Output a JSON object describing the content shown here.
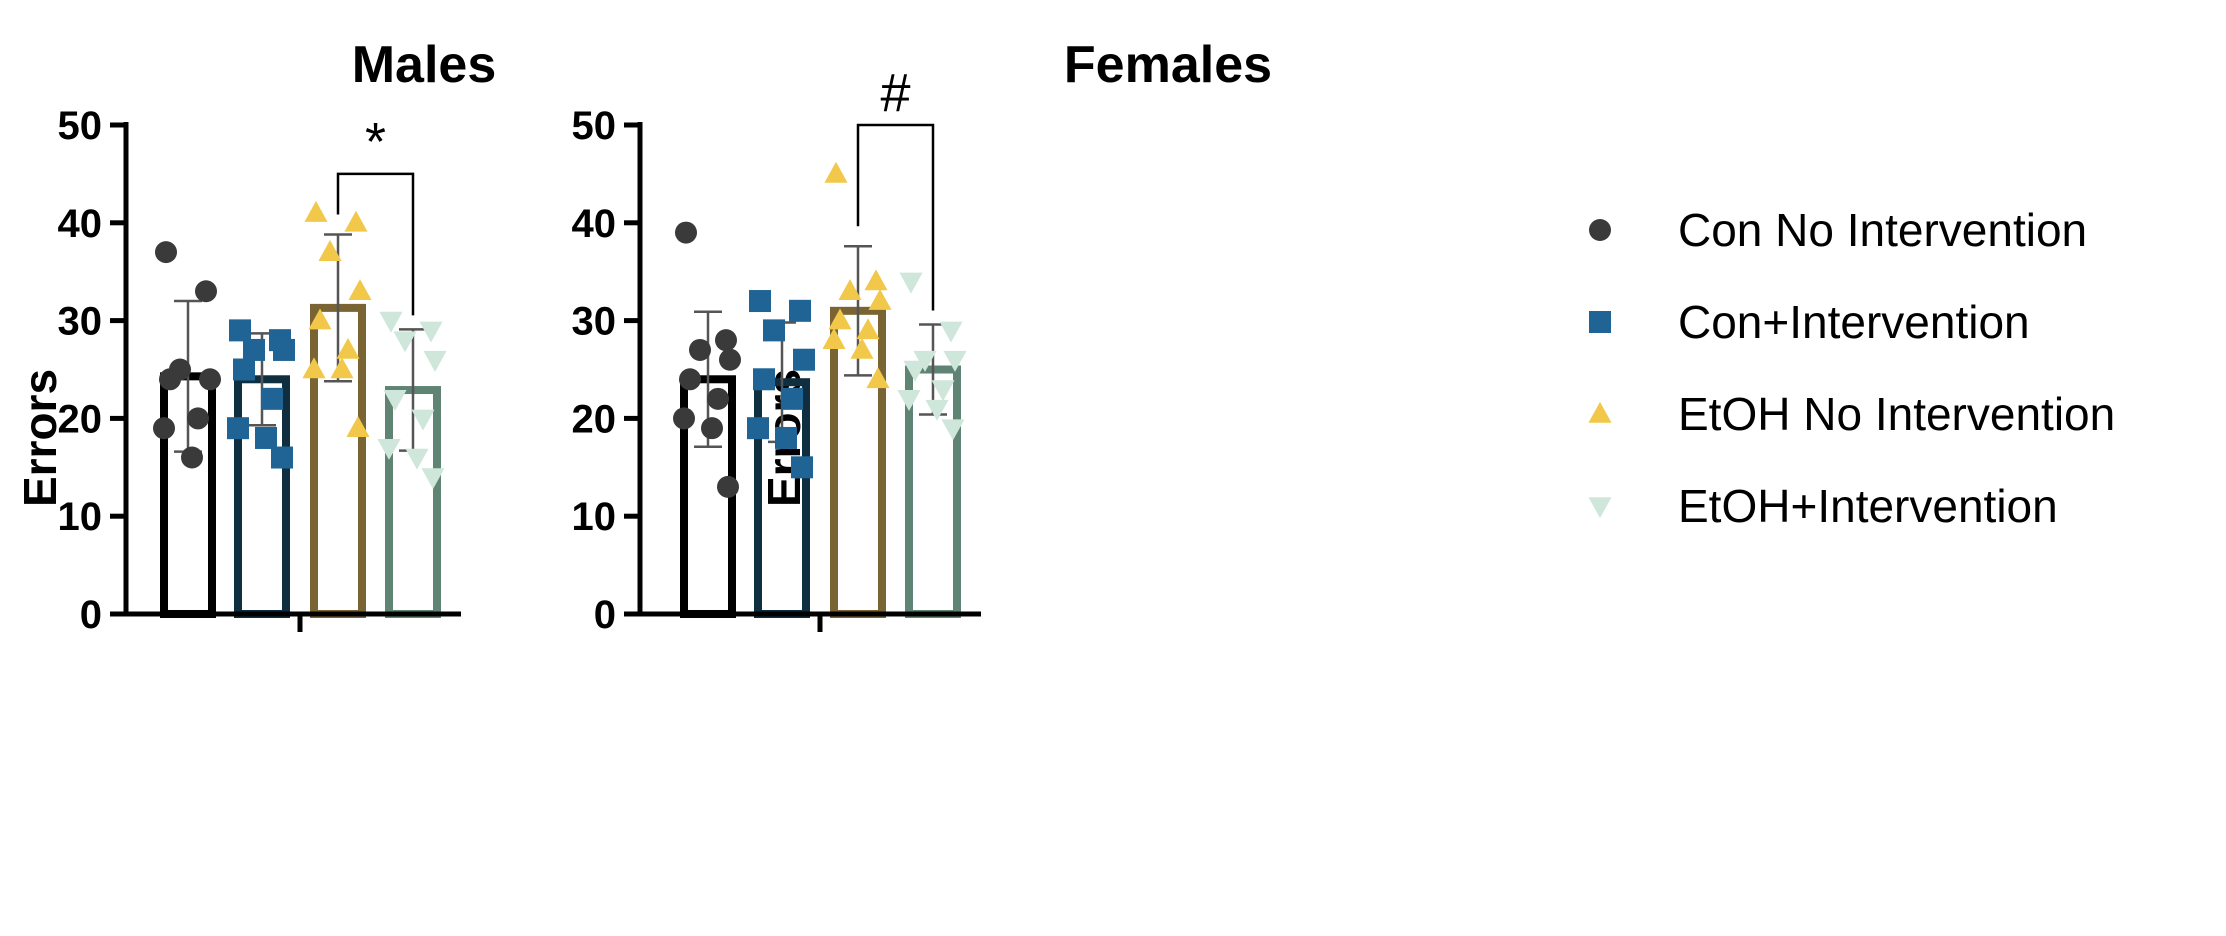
{
  "chart_data": [
    {
      "type": "bar",
      "title": "Males",
      "ylabel": "Errors",
      "xlabel": "",
      "ylim": [
        0,
        50
      ],
      "yticks": [
        "0",
        "10",
        "20",
        "30",
        "40",
        "50"
      ],
      "series": [
        {
          "name": "Con No Intervention",
          "mean": 24.3,
          "sd": 7.7,
          "points": [
            37,
            33,
            25,
            24,
            24,
            20,
            19,
            16
          ]
        },
        {
          "name": "Con+Intervention",
          "mean": 24.0,
          "sd": 4.7,
          "points": [
            29,
            28,
            27,
            27,
            25,
            22,
            19,
            18,
            16
          ]
        },
        {
          "name": "EtOH No Intervention",
          "mean": 31.3,
          "sd": 7.5,
          "points": [
            41,
            40,
            37,
            33,
            30,
            27,
            25,
            25,
            19
          ]
        },
        {
          "name": "EtOH+Intervention",
          "mean": 22.9,
          "sd": 6.2,
          "points": [
            30,
            29,
            28,
            26,
            22,
            20,
            17,
            16,
            14
          ]
        }
      ],
      "significance": {
        "from": "EtOH No Intervention",
        "to": "EtOH+Intervention",
        "label": "*",
        "y": 45
      }
    },
    {
      "type": "bar",
      "title": "Females",
      "ylabel": "Errors",
      "xlabel": "",
      "ylim": [
        0,
        50
      ],
      "yticks": [
        "0",
        "10",
        "20",
        "30",
        "40",
        "50"
      ],
      "series": [
        {
          "name": "Con No Intervention",
          "mean": 24.0,
          "sd": 6.9,
          "points": [
            39,
            28,
            27,
            26,
            24,
            22,
            20,
            19,
            13
          ]
        },
        {
          "name": "Con+Intervention",
          "mean": 23.7,
          "sd": 6.1,
          "points": [
            32,
            31,
            29,
            26,
            24,
            22,
            19,
            18,
            15
          ]
        },
        {
          "name": "EtOH No Intervention",
          "mean": 31.0,
          "sd": 6.6,
          "points": [
            45,
            34,
            33,
            32,
            30,
            29,
            28,
            27,
            24
          ]
        },
        {
          "name": "EtOH+Intervention",
          "mean": 25.0,
          "sd": 4.6,
          "points": [
            34,
            29,
            26,
            26,
            25,
            23,
            22,
            21,
            19
          ]
        }
      ],
      "significance": {
        "from": "EtOH No Intervention",
        "to": "EtOH+Intervention",
        "label": "#",
        "y": 50
      }
    }
  ],
  "legend": [
    {
      "label": "Con No Intervention",
      "marker": "circle",
      "color": "#3a3a3a"
    },
    {
      "label": "Con+Intervention",
      "marker": "square",
      "color": "#1f6494"
    },
    {
      "label": "EtOH No Intervention",
      "marker": "triangle-up",
      "color": "#f2c84b"
    },
    {
      "label": "EtOH+Intervention",
      "marker": "triangle-down",
      "color": "#cfe6da"
    }
  ],
  "bar_colors": [
    "#000000",
    "#0f2f40",
    "#7a6433",
    "#5f8474"
  ],
  "marker_colors": [
    "#3a3a3a",
    "#1f6494",
    "#f2c84b",
    "#cfe6da"
  ]
}
